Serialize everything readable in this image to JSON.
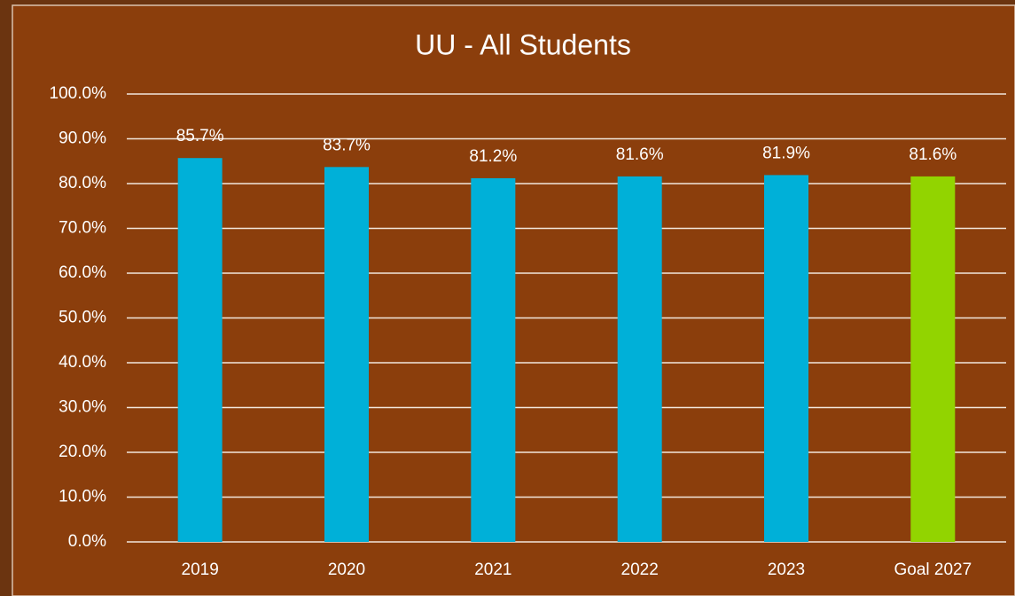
{
  "chart_data": {
    "type": "bar",
    "title": "UU - All Students",
    "categories": [
      "2019",
      "2020",
      "2021",
      "2022",
      "2023",
      "Goal 2027"
    ],
    "values": [
      85.7,
      83.7,
      81.2,
      81.6,
      81.9,
      81.6
    ],
    "value_labels": [
      "85.7%",
      "83.7%",
      "81.2%",
      "81.6%",
      "81.9%",
      "81.6%"
    ],
    "colors": [
      "#00b0d8",
      "#00b0d8",
      "#00b0d8",
      "#00b0d8",
      "#00b0d8",
      "#92d400"
    ],
    "ylim": [
      0,
      100
    ],
    "yticks": [
      {
        "value": 0,
        "label": "0.0%"
      },
      {
        "value": 10,
        "label": "10.0%"
      },
      {
        "value": 20,
        "label": "20.0%"
      },
      {
        "value": 30,
        "label": "30.0%"
      },
      {
        "value": 40,
        "label": "40.0%"
      },
      {
        "value": 50,
        "label": "50.0%"
      },
      {
        "value": 60,
        "label": "60.0%"
      },
      {
        "value": 70,
        "label": "70.0%"
      },
      {
        "value": 80,
        "label": "80.0%"
      },
      {
        "value": 90,
        "label": "90.0%"
      },
      {
        "value": 100,
        "label": "100.0%"
      }
    ],
    "grid": true
  }
}
